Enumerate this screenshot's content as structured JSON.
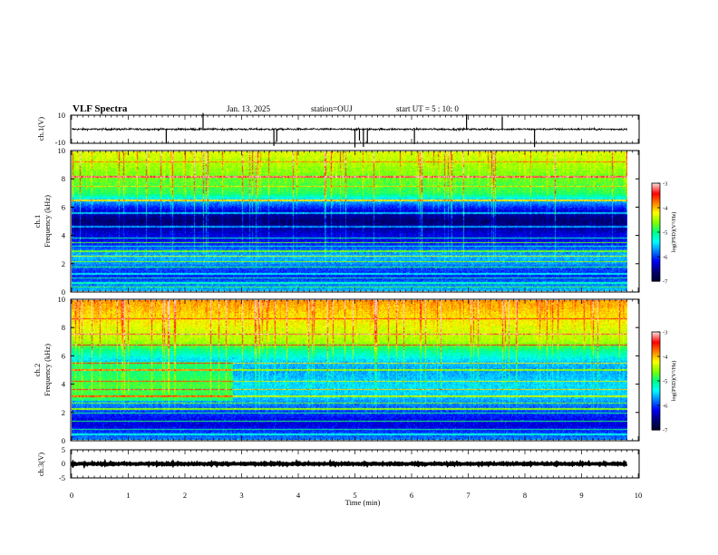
{
  "header": {
    "title": "VLF Spectra",
    "date": "Jan. 13, 2025",
    "station": "station=OUJ",
    "start_ut": "start  UT =  5 : 10: 0"
  },
  "chart_data": [
    {
      "type": "line",
      "panel": "ch1-waveform",
      "ylabel": "ch.1(V)",
      "ylim": [
        -10,
        10
      ],
      "yticks": [
        "10",
        "-10"
      ],
      "xlim": [
        0,
        10
      ],
      "baseline": 0,
      "amplitude_noise": 1.2,
      "spikes_min": [
        1.67,
        2.32,
        3.57,
        3.62,
        5.0,
        5.08,
        5.15,
        5.22,
        6.05,
        6.97,
        7.6,
        8.17
      ],
      "color": "#000000"
    },
    {
      "type": "heatmap",
      "panel": "ch1-spectrogram",
      "ylabel": "ch.1\nFrequency (kHz)",
      "ylabel_lines": [
        "ch.1",
        "Frequency (kHz)"
      ],
      "ylim": [
        0,
        10
      ],
      "yticks": [
        "0",
        "2",
        "4",
        "6",
        "8",
        "10"
      ],
      "xlim": [
        0,
        9.8
      ],
      "clim": [
        -7,
        -3
      ],
      "colorbar_label": "log(PSD)(V²/Hz)",
      "colorbar_ticks": [
        "-3",
        "-4",
        "-5",
        "-6",
        "-7"
      ],
      "profile": [
        {
          "f": 0.0,
          "v": -5.6
        },
        {
          "f": 0.5,
          "v": -5.8
        },
        {
          "f": 1.0,
          "v": -6.1
        },
        {
          "f": 1.5,
          "v": -6.0
        },
        {
          "f": 2.0,
          "v": -5.7
        },
        {
          "f": 2.5,
          "v": -5.6
        },
        {
          "f": 3.0,
          "v": -5.9
        },
        {
          "f": 3.5,
          "v": -6.2
        },
        {
          "f": 4.0,
          "v": -6.3
        },
        {
          "f": 4.5,
          "v": -6.5
        },
        {
          "f": 5.0,
          "v": -6.7
        },
        {
          "f": 5.5,
          "v": -6.5
        },
        {
          "f": 6.0,
          "v": -6.1
        },
        {
          "f": 6.5,
          "v": -5.6
        },
        {
          "f": 7.0,
          "v": -4.9
        },
        {
          "f": 7.5,
          "v": -4.8
        },
        {
          "f": 8.0,
          "v": -4.7
        },
        {
          "f": 8.5,
          "v": -4.6
        },
        {
          "f": 9.0,
          "v": -4.5
        },
        {
          "f": 9.5,
          "v": -4.4
        },
        {
          "f": 10.0,
          "v": -4.3
        }
      ],
      "lines_khz": [
        0.25,
        0.55,
        0.9,
        1.2,
        1.7,
        2.1,
        2.5,
        2.85,
        3.2,
        3.45,
        3.8,
        4.6,
        5.6,
        6.5,
        7.5,
        8.2,
        9.3
      ]
    },
    {
      "type": "heatmap",
      "panel": "ch2-spectrogram",
      "ylabel": "ch.2\nFrequency (kHz)",
      "ylabel_lines": [
        "ch.2",
        "Frequency (kHz)"
      ],
      "ylim": [
        0,
        10
      ],
      "yticks": [
        "0",
        "2",
        "4",
        "6",
        "8",
        "10"
      ],
      "xlim": [
        0,
        9.8
      ],
      "clim": [
        -7,
        -3
      ],
      "colorbar_label": "log(PSD)(V²/Hz)",
      "colorbar_ticks": [
        "-3",
        "-4",
        "-5",
        "-6",
        "-7"
      ],
      "profile": [
        {
          "f": 0.0,
          "v": -5.8
        },
        {
          "f": 0.5,
          "v": -6.0
        },
        {
          "f": 1.0,
          "v": -6.3
        },
        {
          "f": 1.5,
          "v": -6.2
        },
        {
          "f": 2.0,
          "v": -6.0
        },
        {
          "f": 2.5,
          "v": -5.8
        },
        {
          "f": 3.0,
          "v": -5.6
        },
        {
          "f": 3.5,
          "v": -5.5
        },
        {
          "f": 4.0,
          "v": -5.5
        },
        {
          "f": 4.5,
          "v": -5.6
        },
        {
          "f": 5.0,
          "v": -5.7
        },
        {
          "f": 5.5,
          "v": -5.6
        },
        {
          "f": 6.0,
          "v": -5.3
        },
        {
          "f": 6.5,
          "v": -5.0
        },
        {
          "f": 7.0,
          "v": -4.5
        },
        {
          "f": 7.5,
          "v": -4.4
        },
        {
          "f": 8.0,
          "v": -4.3
        },
        {
          "f": 8.5,
          "v": -4.2
        },
        {
          "f": 9.0,
          "v": -4.1
        },
        {
          "f": 9.5,
          "v": -4.0
        },
        {
          "f": 10.0,
          "v": -3.9
        }
      ],
      "early_interval_min": [
        0,
        2.85
      ],
      "early_boost": 0.7,
      "lines_khz": [
        0.35,
        0.7,
        1.3,
        1.9,
        2.2,
        2.6,
        3.1,
        3.6,
        4.2,
        5.0,
        5.5,
        6.8,
        7.6,
        8.7
      ]
    },
    {
      "type": "line",
      "panel": "ch3-waveform",
      "ylabel": "ch.3(V)",
      "ylim": [
        -5,
        5
      ],
      "yticks": [
        "5",
        "0",
        "-5"
      ],
      "xlim": [
        0,
        10
      ],
      "baseline": 0,
      "amplitude_noise": 0.35,
      "color": "#000000"
    }
  ],
  "x_axis": {
    "label": "Time  (min)",
    "ticks": [
      "0",
      "1",
      "2",
      "3",
      "4",
      "5",
      "6",
      "7",
      "8",
      "9",
      "10"
    ],
    "xlim": [
      0,
      10
    ]
  },
  "colors": {
    "colormap": [
      "#000033",
      "#000080",
      "#0000ff",
      "#0080ff",
      "#00ffff",
      "#00ff80",
      "#80ff00",
      "#ffff00",
      "#ff8000",
      "#ff0000",
      "#ffd0d0"
    ],
    "frame": "#000000",
    "background": "#ffffff"
  }
}
